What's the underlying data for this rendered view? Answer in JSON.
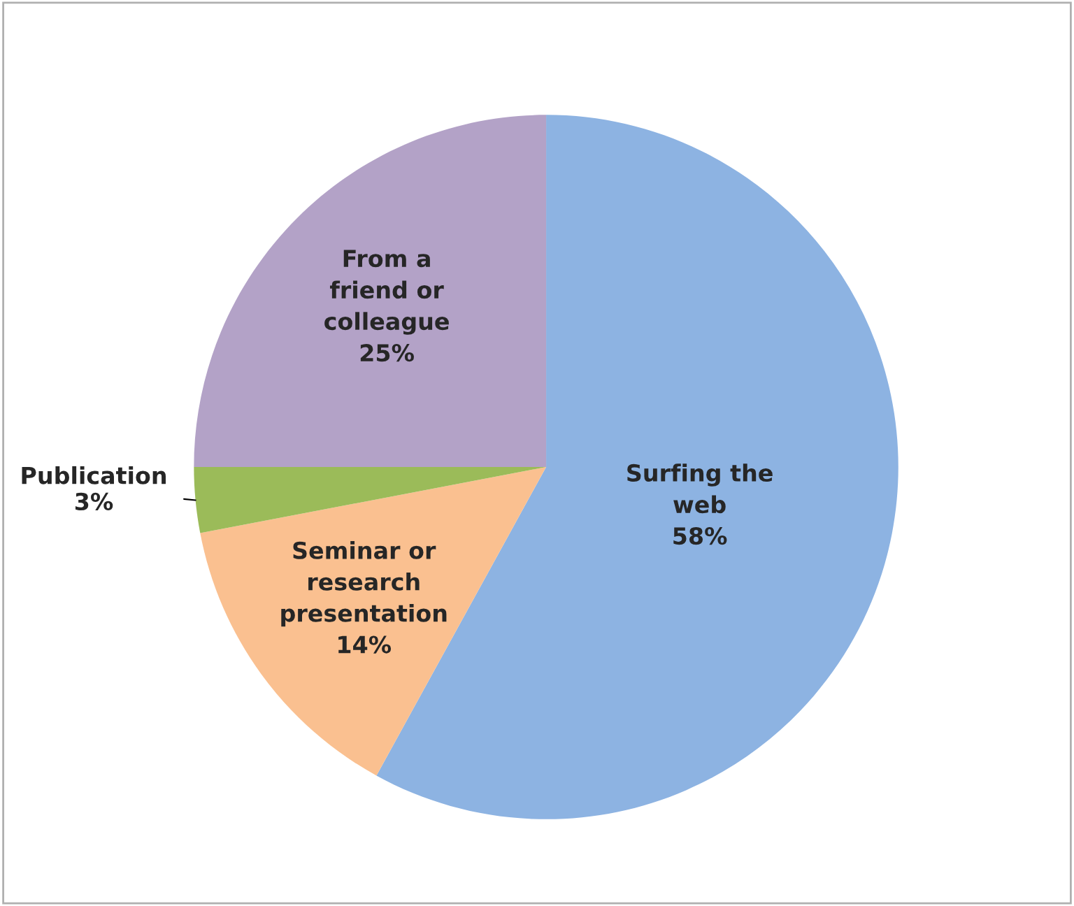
{
  "chart_data": {
    "type": "pie",
    "categories": [
      "Surfing the\nweb",
      "Seminar or\nresearch\npresentation",
      "Publication",
      "From a\nfriend or\ncolleague"
    ],
    "values": [
      58,
      14,
      3,
      25
    ],
    "colors": [
      "#8db3e2",
      "#fac090",
      "#9bbb59",
      "#b3a2c7"
    ],
    "value_labels": [
      "58%",
      "14%",
      "3%",
      "25%"
    ]
  }
}
